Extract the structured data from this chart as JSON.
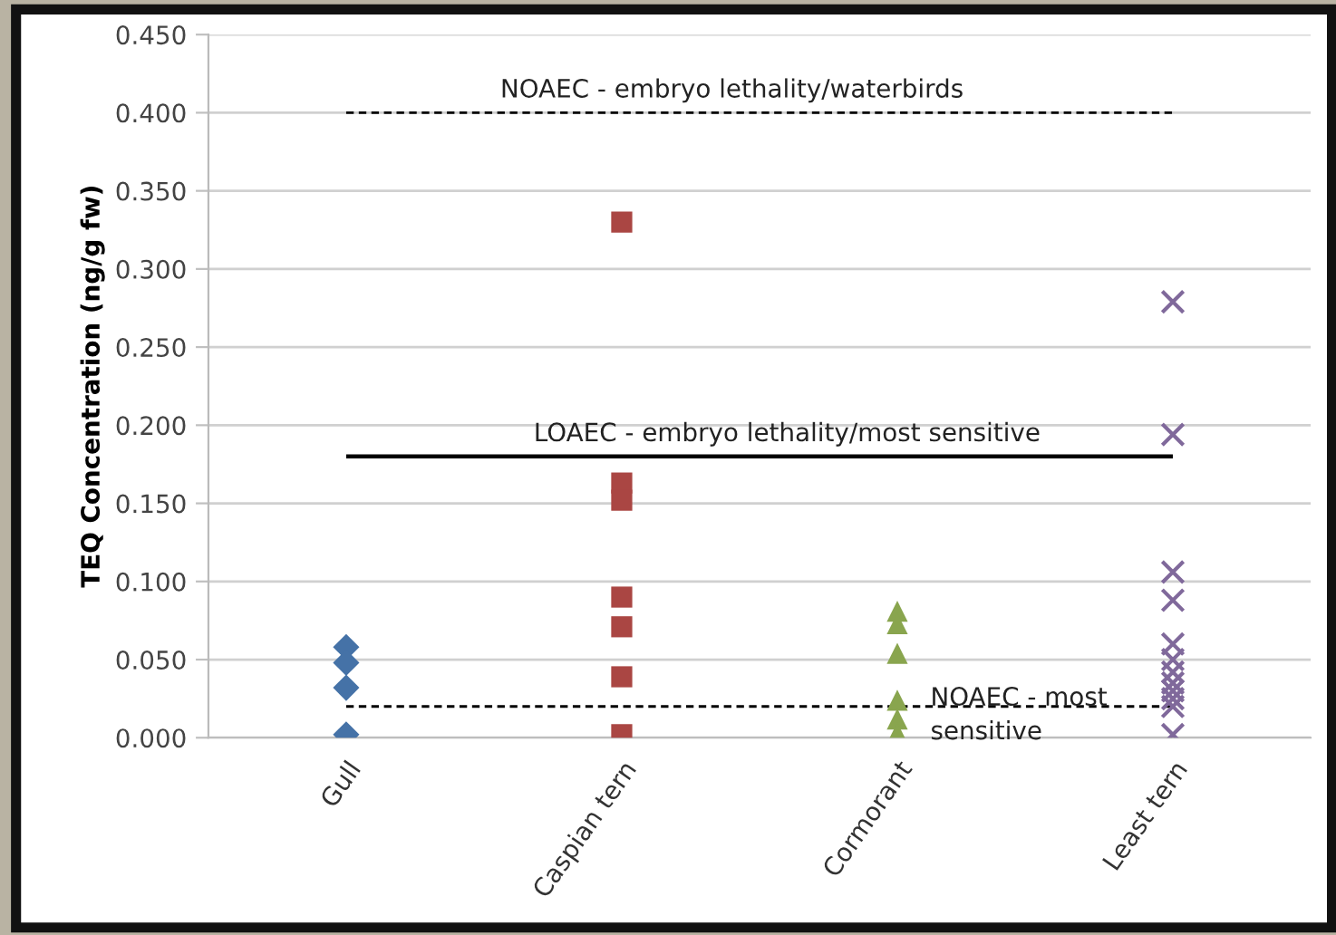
{
  "chart_data": {
    "type": "scatter",
    "ylabel": "TEQ Concentration (ng/g fw)",
    "categories": [
      "Gull",
      "Caspian tern",
      "Cormorant",
      "Least tern"
    ],
    "ylim": [
      0,
      0.45
    ],
    "yticks": [
      {
        "value": 0,
        "label": "0.000"
      },
      {
        "value": 0.05,
        "label": "0.050"
      },
      {
        "value": 0.1,
        "label": "0.100"
      },
      {
        "value": 0.15,
        "label": "0.150"
      },
      {
        "value": 0.2,
        "label": "0.200"
      },
      {
        "value": 0.25,
        "label": "0.250"
      },
      {
        "value": 0.3,
        "label": "0.300"
      },
      {
        "value": 0.35,
        "label": "0.350"
      },
      {
        "value": 0.4,
        "label": "0.400"
      },
      {
        "value": 0.45,
        "label": "0.450"
      }
    ],
    "grid": "y",
    "series": [
      {
        "color": "#4572a7",
        "marker": "diamond",
        "x": [
          "Gull",
          "Gull",
          "Gull",
          "Gull"
        ],
        "values": [
          0.058,
          0.048,
          0.032,
          0.002
        ]
      },
      {
        "color": "#aa4643",
        "marker": "square",
        "x": [
          "Caspian tern",
          "Caspian tern",
          "Caspian tern",
          "Caspian tern",
          "Caspian tern",
          "Caspian tern",
          "Caspian tern",
          "Caspian tern"
        ],
        "values": [
          0.33,
          0.163,
          null,
          0.152,
          0.09,
          0.071,
          0.039,
          0.002
        ]
      },
      {
        "color": "#89a54e",
        "marker": "triangle",
        "x": [
          "Cormorant",
          "Cormorant",
          "Cormorant",
          "Cormorant",
          "Cormorant",
          "Cormorant"
        ],
        "values": [
          0.081,
          0.073,
          0.054,
          0.024,
          0.012,
          0.003
        ]
      },
      {
        "color": "#80699b",
        "marker": "cross",
        "x": [
          "Least tern",
          "Least tern",
          "Least tern",
          "Least tern",
          "Least tern",
          "Least tern",
          "Least tern",
          "Least tern",
          "Least tern",
          "Least tern",
          "Least tern",
          "Least tern"
        ],
        "values": [
          0.279,
          0.194,
          0.106,
          0.088,
          0.06,
          0.05,
          0.042,
          0.035,
          0.03,
          0.025,
          0.02,
          0.002
        ]
      }
    ],
    "ref_lines": [
      {
        "axis": "y",
        "value": 0.4,
        "label": "NOAEC - embryo lethality/waterbirds",
        "line_style": "dashed",
        "color": "#000000"
      },
      {
        "axis": "y",
        "value": 0.18,
        "label": "LOAEC - embryo lethality/most sensitive",
        "line_style": "solid",
        "color": "#000000"
      },
      {
        "axis": "y",
        "value": 0.02,
        "label": "NOAEC - most\nsensitive",
        "line_style": "dashed",
        "color": "#000000"
      }
    ]
  }
}
